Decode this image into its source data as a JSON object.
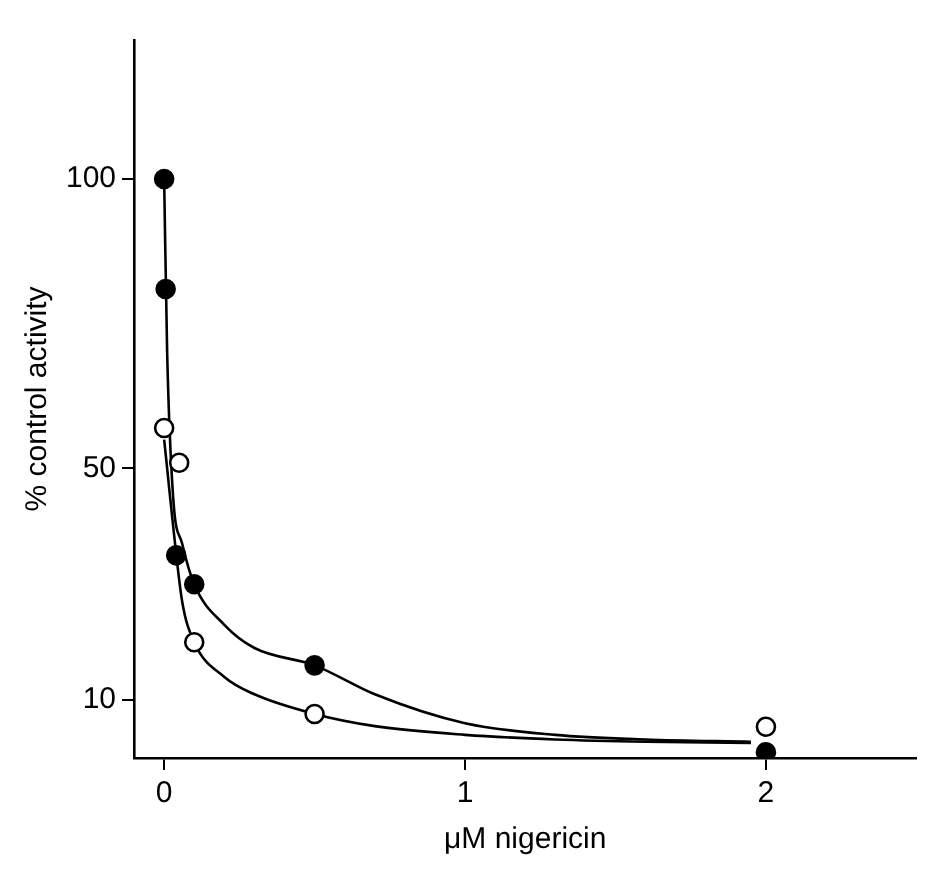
{
  "chart_data": {
    "type": "scatter",
    "xlabel": "μM nigericin",
    "ylabel": "% control activity",
    "xlim": [
      -0.1,
      2.5
    ],
    "ylim": [
      0,
      124
    ],
    "xticks": [
      0,
      1,
      2
    ],
    "yticks": [
      10,
      50,
      100
    ],
    "grid": false,
    "legend": false,
    "series": [
      {
        "color": "#000000",
        "marker": "circle",
        "x": [
          0,
          0.005,
          0.04,
          0.1,
          0.5,
          2
        ],
        "values": [
          100,
          81,
          35,
          30,
          16,
          1
        ]
      },
      {
        "color": "#ffffff",
        "marker": "circle",
        "x": [
          0,
          0.05,
          0.1,
          0.5,
          2
        ],
        "values": [
          57,
          51,
          20,
          7.6,
          5.4
        ]
      },
      {
        "type": "line",
        "color": "#000000",
        "marker": "none",
        "x": [
          0,
          0.01,
          0.03,
          0.06,
          0.1,
          0.2,
          0.3,
          0.5,
          0.7,
          1,
          1.3,
          1.6,
          1.95
        ],
        "values": [
          100,
          70,
          45,
          37,
          30,
          23,
          19,
          16,
          11,
          6,
          4,
          3.2,
          2.8
        ]
      },
      {
        "type": "line",
        "color": "#000000",
        "marker": "none",
        "x": [
          0,
          0.01,
          0.03,
          0.06,
          0.1,
          0.2,
          0.3,
          0.5,
          0.7,
          1,
          1.3,
          1.6,
          1.95
        ],
        "values": [
          55,
          50,
          40,
          27,
          20,
          14,
          11,
          7.6,
          5.5,
          4,
          3.2,
          2.8,
          2.6
        ]
      }
    ]
  }
}
